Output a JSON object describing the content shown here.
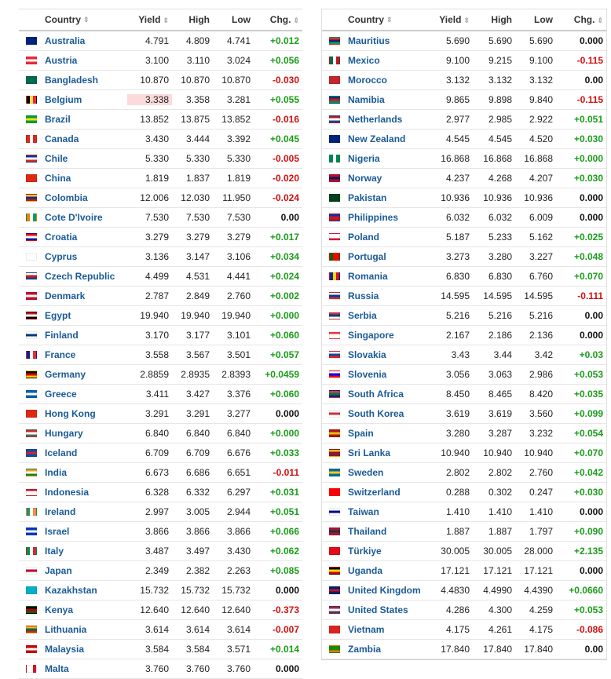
{
  "headers": {
    "country": "Country",
    "yield": "Yield",
    "high": "High",
    "low": "Low",
    "chg": "Chg."
  },
  "sort_glyph": "⇕",
  "colors": {
    "positive": "#1a9c1a",
    "negative": "#d01010",
    "link": "#1a5a96",
    "highlight": "#fbdadb"
  },
  "left": [
    {
      "country": "Australia",
      "yield": "4.791",
      "high": "4.809",
      "low": "4.741",
      "chg": "+0.012",
      "flag": [
        "#00247d",
        "#00247d",
        "#00247d"
      ]
    },
    {
      "country": "Austria",
      "yield": "3.100",
      "high": "3.110",
      "low": "3.024",
      "chg": "+0.056",
      "flag": [
        "#ed2939",
        "#ffffff",
        "#ed2939"
      ]
    },
    {
      "country": "Bangladesh",
      "yield": "10.870",
      "high": "10.870",
      "low": "10.870",
      "chg": "-0.030",
      "flag": [
        "#006a4e",
        "#006a4e",
        "#006a4e"
      ]
    },
    {
      "country": "Belgium",
      "yield": "3.338",
      "high": "3.358",
      "low": "3.281",
      "chg": "+0.055",
      "flag": [
        "#000000",
        "#fae042",
        "#ed2939"
      ],
      "vertical": true,
      "highlight": true
    },
    {
      "country": "Brazil",
      "yield": "13.852",
      "high": "13.875",
      "low": "13.852",
      "chg": "-0.016",
      "flag": [
        "#009c3b",
        "#ffdf00",
        "#009c3b"
      ]
    },
    {
      "country": "Canada",
      "yield": "3.430",
      "high": "3.444",
      "low": "3.392",
      "chg": "+0.045",
      "flag": [
        "#d52b1e",
        "#ffffff",
        "#d52b1e"
      ],
      "vertical": true
    },
    {
      "country": "Chile",
      "yield": "5.330",
      "high": "5.330",
      "low": "5.330",
      "chg": "-0.005",
      "flag": [
        "#0039a6",
        "#ffffff",
        "#d52b1e"
      ]
    },
    {
      "country": "China",
      "yield": "1.819",
      "high": "1.837",
      "low": "1.819",
      "chg": "-0.020",
      "flag": [
        "#de2910",
        "#de2910",
        "#de2910"
      ]
    },
    {
      "country": "Colombia",
      "yield": "12.006",
      "high": "12.030",
      "low": "11.950",
      "chg": "-0.024",
      "flag": [
        "#fcd116",
        "#003893",
        "#ce1126"
      ]
    },
    {
      "country": "Cote D'Ivoire",
      "yield": "7.530",
      "high": "7.530",
      "low": "7.530",
      "chg": "0.00",
      "flag": [
        "#f77f00",
        "#ffffff",
        "#009e60"
      ],
      "vertical": true
    },
    {
      "country": "Croatia",
      "yield": "3.279",
      "high": "3.279",
      "low": "3.279",
      "chg": "+0.017",
      "flag": [
        "#ff0000",
        "#ffffff",
        "#171796"
      ]
    },
    {
      "country": "Cyprus",
      "yield": "3.136",
      "high": "3.147",
      "low": "3.106",
      "chg": "+0.034",
      "flag": [
        "#ffffff",
        "#ffffff",
        "#ffffff"
      ]
    },
    {
      "country": "Czech Republic",
      "yield": "4.499",
      "high": "4.531",
      "low": "4.441",
      "chg": "+0.024",
      "flag": [
        "#ffffff",
        "#d7141a",
        "#11457e"
      ]
    },
    {
      "country": "Denmark",
      "yield": "2.787",
      "high": "2.849",
      "low": "2.760",
      "chg": "+0.002",
      "flag": [
        "#c60c30",
        "#ffffff",
        "#c60c30"
      ]
    },
    {
      "country": "Egypt",
      "yield": "19.940",
      "high": "19.940",
      "low": "19.940",
      "chg": "+0.000",
      "flag": [
        "#ce1126",
        "#ffffff",
        "#000000"
      ]
    },
    {
      "country": "Finland",
      "yield": "3.170",
      "high": "3.177",
      "low": "3.101",
      "chg": "+0.060",
      "flag": [
        "#ffffff",
        "#003580",
        "#ffffff"
      ]
    },
    {
      "country": "France",
      "yield": "3.558",
      "high": "3.567",
      "low": "3.501",
      "chg": "+0.057",
      "flag": [
        "#002395",
        "#ffffff",
        "#ed2939"
      ],
      "vertical": true
    },
    {
      "country": "Germany",
      "yield": "2.8859",
      "high": "2.8935",
      "low": "2.8393",
      "chg": "+0.0459",
      "flag": [
        "#000000",
        "#dd0000",
        "#ffce00"
      ]
    },
    {
      "country": "Greece",
      "yield": "3.411",
      "high": "3.427",
      "low": "3.376",
      "chg": "+0.060",
      "flag": [
        "#0d5eaf",
        "#ffffff",
        "#0d5eaf"
      ]
    },
    {
      "country": "Hong Kong",
      "yield": "3.291",
      "high": "3.291",
      "low": "3.277",
      "chg": "0.000",
      "flag": [
        "#de2910",
        "#de2910",
        "#de2910"
      ]
    },
    {
      "country": "Hungary",
      "yield": "6.840",
      "high": "6.840",
      "low": "6.840",
      "chg": "+0.000",
      "flag": [
        "#ce2939",
        "#ffffff",
        "#477050"
      ]
    },
    {
      "country": "Iceland",
      "yield": "6.709",
      "high": "6.709",
      "low": "6.676",
      "chg": "+0.033",
      "flag": [
        "#02529c",
        "#dc1e35",
        "#02529c"
      ]
    },
    {
      "country": "India",
      "yield": "6.673",
      "high": "6.686",
      "low": "6.651",
      "chg": "-0.011",
      "flag": [
        "#ff9933",
        "#ffffff",
        "#138808"
      ]
    },
    {
      "country": "Indonesia",
      "yield": "6.328",
      "high": "6.332",
      "low": "6.297",
      "chg": "+0.031",
      "flag": [
        "#ce1126",
        "#ffffff",
        "#ffffff"
      ]
    },
    {
      "country": "Ireland",
      "yield": "2.997",
      "high": "3.005",
      "low": "2.944",
      "chg": "+0.051",
      "flag": [
        "#169b62",
        "#ffffff",
        "#ff883e"
      ],
      "vertical": true
    },
    {
      "country": "Israel",
      "yield": "3.866",
      "high": "3.866",
      "low": "3.866",
      "chg": "+0.066",
      "flag": [
        "#0038b8",
        "#ffffff",
        "#0038b8"
      ]
    },
    {
      "country": "Italy",
      "yield": "3.487",
      "high": "3.497",
      "low": "3.430",
      "chg": "+0.062",
      "flag": [
        "#009246",
        "#ffffff",
        "#ce2b37"
      ],
      "vertical": true
    },
    {
      "country": "Japan",
      "yield": "2.349",
      "high": "2.382",
      "low": "2.263",
      "chg": "+0.085",
      "flag": [
        "#ffffff",
        "#bc002d",
        "#ffffff"
      ]
    },
    {
      "country": "Kazakhstan",
      "yield": "15.732",
      "high": "15.732",
      "low": "15.732",
      "chg": "0.000",
      "flag": [
        "#00afca",
        "#00afca",
        "#00afca"
      ]
    },
    {
      "country": "Kenya",
      "yield": "12.640",
      "high": "12.640",
      "low": "12.640",
      "chg": "-0.373",
      "flag": [
        "#000000",
        "#bb0000",
        "#006600"
      ]
    },
    {
      "country": "Lithuania",
      "yield": "3.614",
      "high": "3.614",
      "low": "3.614",
      "chg": "-0.007",
      "flag": [
        "#fdb913",
        "#006a44",
        "#c1272d"
      ]
    },
    {
      "country": "Malaysia",
      "yield": "3.584",
      "high": "3.584",
      "low": "3.571",
      "chg": "+0.014",
      "flag": [
        "#cc0001",
        "#ffffff",
        "#cc0001"
      ]
    },
    {
      "country": "Malta",
      "yield": "3.760",
      "high": "3.760",
      "low": "3.760",
      "chg": "0.000",
      "flag": [
        "#ffffff",
        "#ffffff",
        "#cf142b"
      ],
      "vertical": true
    }
  ],
  "right": [
    {
      "country": "Mauritius",
      "yield": "5.690",
      "high": "5.690",
      "low": "5.690",
      "chg": "0.000",
      "flag": [
        "#ea2839",
        "#1a206d",
        "#00a551"
      ]
    },
    {
      "country": "Mexico",
      "yield": "9.100",
      "high": "9.215",
      "low": "9.100",
      "chg": "-0.115",
      "flag": [
        "#006847",
        "#ffffff",
        "#ce1126"
      ],
      "vertical": true
    },
    {
      "country": "Morocco",
      "yield": "3.132",
      "high": "3.132",
      "low": "3.132",
      "chg": "0.00",
      "flag": [
        "#c1272d",
        "#c1272d",
        "#c1272d"
      ]
    },
    {
      "country": "Namibia",
      "yield": "9.865",
      "high": "9.898",
      "low": "9.840",
      "chg": "-0.115",
      "flag": [
        "#003580",
        "#d21034",
        "#009543"
      ]
    },
    {
      "country": "Netherlands",
      "yield": "2.977",
      "high": "2.985",
      "low": "2.922",
      "chg": "+0.051",
      "flag": [
        "#ae1c28",
        "#ffffff",
        "#21468b"
      ]
    },
    {
      "country": "New Zealand",
      "yield": "4.545",
      "high": "4.545",
      "low": "4.520",
      "chg": "+0.030",
      "flag": [
        "#00247d",
        "#00247d",
        "#00247d"
      ]
    },
    {
      "country": "Nigeria",
      "yield": "16.868",
      "high": "16.868",
      "low": "16.868",
      "chg": "+0.000",
      "flag": [
        "#008751",
        "#ffffff",
        "#008751"
      ],
      "vertical": true
    },
    {
      "country": "Norway",
      "yield": "4.237",
      "high": "4.268",
      "low": "4.207",
      "chg": "+0.030",
      "flag": [
        "#ba0c2f",
        "#00205b",
        "#ba0c2f"
      ]
    },
    {
      "country": "Pakistan",
      "yield": "10.936",
      "high": "10.936",
      "low": "10.936",
      "chg": "0.000",
      "flag": [
        "#01411c",
        "#01411c",
        "#01411c"
      ]
    },
    {
      "country": "Philippines",
      "yield": "6.032",
      "high": "6.032",
      "low": "6.009",
      "chg": "0.000",
      "flag": [
        "#0038a8",
        "#ce1126",
        "#ce1126"
      ]
    },
    {
      "country": "Poland",
      "yield": "5.187",
      "high": "5.233",
      "low": "5.162",
      "chg": "+0.025",
      "flag": [
        "#ffffff",
        "#ffffff",
        "#dc143c"
      ]
    },
    {
      "country": "Portugal",
      "yield": "3.273",
      "high": "3.280",
      "low": "3.227",
      "chg": "+0.048",
      "flag": [
        "#006600",
        "#ff0000",
        "#ff0000"
      ],
      "vertical": true
    },
    {
      "country": "Romania",
      "yield": "6.830",
      "high": "6.830",
      "low": "6.760",
      "chg": "+0.070",
      "flag": [
        "#002b7f",
        "#fcd116",
        "#ce1126"
      ],
      "vertical": true
    },
    {
      "country": "Russia",
      "yield": "14.595",
      "high": "14.595",
      "low": "14.595",
      "chg": "-0.111",
      "flag": [
        "#ffffff",
        "#0039a6",
        "#d52b1e"
      ]
    },
    {
      "country": "Serbia",
      "yield": "5.216",
      "high": "5.216",
      "low": "5.216",
      "chg": "0.00",
      "flag": [
        "#c6363c",
        "#0c4076",
        "#ffffff"
      ]
    },
    {
      "country": "Singapore",
      "yield": "2.167",
      "high": "2.186",
      "low": "2.136",
      "chg": "0.000",
      "flag": [
        "#ef3340",
        "#ffffff",
        "#ffffff"
      ]
    },
    {
      "country": "Slovakia",
      "yield": "3.43",
      "high": "3.44",
      "low": "3.42",
      "chg": "+0.03",
      "flag": [
        "#ffffff",
        "#0b4ea2",
        "#ee1c25"
      ]
    },
    {
      "country": "Slovenia",
      "yield": "3.056",
      "high": "3.063",
      "low": "2.986",
      "chg": "+0.053",
      "flag": [
        "#ffffff",
        "#0000ff",
        "#ff0000"
      ]
    },
    {
      "country": "South Africa",
      "yield": "8.450",
      "high": "8.465",
      "low": "8.420",
      "chg": "+0.035",
      "flag": [
        "#de3831",
        "#007a4d",
        "#002395"
      ]
    },
    {
      "country": "South Korea",
      "yield": "3.619",
      "high": "3.619",
      "low": "3.560",
      "chg": "+0.099",
      "flag": [
        "#ffffff",
        "#cd2e3a",
        "#ffffff"
      ]
    },
    {
      "country": "Spain",
      "yield": "3.280",
      "high": "3.287",
      "low": "3.232",
      "chg": "+0.054",
      "flag": [
        "#aa151b",
        "#f1bf00",
        "#aa151b"
      ]
    },
    {
      "country": "Sri Lanka",
      "yield": "10.940",
      "high": "10.940",
      "low": "10.940",
      "chg": "+0.070",
      "flag": [
        "#ffb700",
        "#8d153a",
        "#8d153a"
      ]
    },
    {
      "country": "Sweden",
      "yield": "2.802",
      "high": "2.802",
      "low": "2.760",
      "chg": "+0.042",
      "flag": [
        "#006aa7",
        "#fecc00",
        "#006aa7"
      ]
    },
    {
      "country": "Switzerland",
      "yield": "0.288",
      "high": "0.302",
      "low": "0.247",
      "chg": "+0.030",
      "flag": [
        "#ff0000",
        "#ff0000",
        "#ff0000"
      ]
    },
    {
      "country": "Taiwan",
      "yield": "1.410",
      "high": "1.410",
      "low": "1.410",
      "chg": "0.000",
      "flag": [
        "#ffffff",
        "#000095",
        "#ffffff"
      ]
    },
    {
      "country": "Thailand",
      "yield": "1.887",
      "high": "1.887",
      "low": "1.797",
      "chg": "+0.090",
      "flag": [
        "#a51931",
        "#2d2a4a",
        "#a51931"
      ]
    },
    {
      "country": "Türkiye",
      "yield": "30.005",
      "high": "30.005",
      "low": "28.000",
      "chg": "+2.135",
      "flag": [
        "#e30a17",
        "#e30a17",
        "#e30a17"
      ]
    },
    {
      "country": "Uganda",
      "yield": "17.121",
      "high": "17.121",
      "low": "17.121",
      "chg": "0.000",
      "flag": [
        "#000000",
        "#fcdc04",
        "#d90000"
      ]
    },
    {
      "country": "United Kingdom",
      "yield": "4.4830",
      "high": "4.4990",
      "low": "4.4390",
      "chg": "+0.0660",
      "flag": [
        "#012169",
        "#c8102e",
        "#012169"
      ]
    },
    {
      "country": "United States",
      "yield": "4.286",
      "high": "4.300",
      "low": "4.259",
      "chg": "+0.053",
      "flag": [
        "#b22234",
        "#ffffff",
        "#3c3b6e"
      ]
    },
    {
      "country": "Vietnam",
      "yield": "4.175",
      "high": "4.261",
      "low": "4.175",
      "chg": "-0.086",
      "flag": [
        "#da251d",
        "#da251d",
        "#da251d"
      ]
    },
    {
      "country": "Zambia",
      "yield": "17.840",
      "high": "17.840",
      "low": "17.840",
      "chg": "0.00",
      "flag": [
        "#198a00",
        "#198a00",
        "#ef7d00"
      ]
    }
  ]
}
